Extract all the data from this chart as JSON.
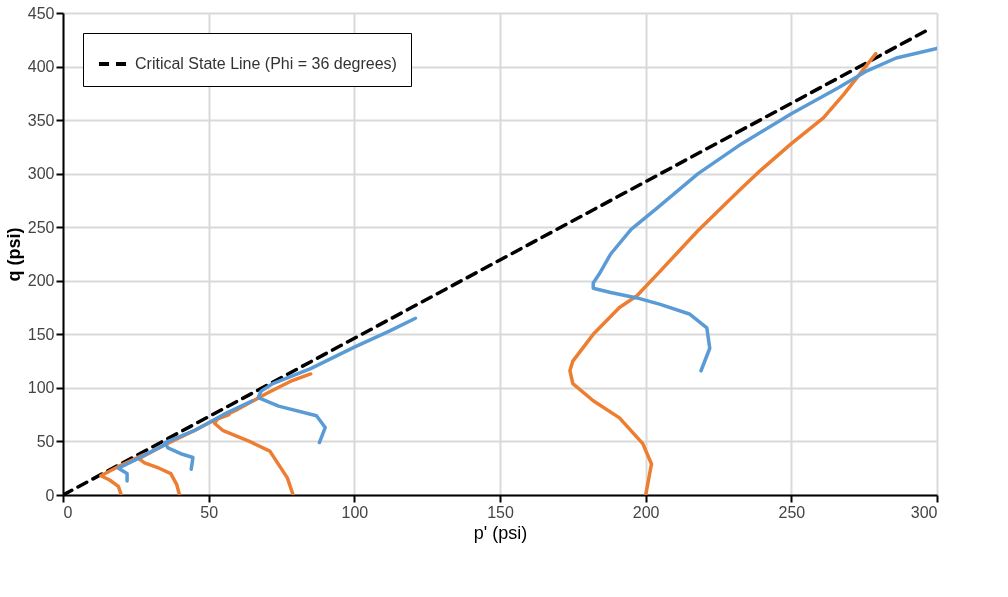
{
  "chart_data": {
    "type": "line",
    "xlabel": "p' (psi)",
    "ylabel": "q (psi)",
    "xlim": [
      0,
      300
    ],
    "ylim": [
      0,
      450
    ],
    "xticks": [
      0,
      50,
      100,
      150,
      200,
      250,
      300
    ],
    "yticks": [
      0,
      50,
      100,
      150,
      200,
      250,
      300,
      350,
      400,
      450
    ],
    "grid": true,
    "legend": "top left",
    "marker": "none",
    "series": [
      {
        "name": "Critical State Line (Phi = 36 degrees)",
        "color": "#000000",
        "line_style": "dashed",
        "x": [
          0,
          296
        ],
        "values": [
          0,
          433
        ]
      },
      {
        "color": "#ed7d31",
        "line_style": "solid",
        "x": [
          20,
          19,
          16,
          13,
          20,
          28
        ],
        "values": [
          0,
          8,
          14,
          18,
          28,
          38
        ]
      },
      {
        "color": "#ed7d31",
        "line_style": "solid",
        "x": [
          40,
          39,
          37,
          33,
          28,
          26,
          35,
          45,
          52,
          57
        ],
        "values": [
          0,
          10,
          20,
          25,
          30,
          34,
          47,
          60,
          70,
          75
        ]
      },
      {
        "color": "#ed7d31",
        "line_style": "solid",
        "x": [
          79,
          77,
          71,
          64,
          55,
          52,
          53,
          60,
          70,
          78,
          85
        ],
        "values": [
          0,
          16,
          41,
          50,
          60,
          67,
          71,
          80,
          95,
          106,
          113
        ]
      },
      {
        "color": "#ed7d31",
        "line_style": "solid",
        "x": [
          200,
          202,
          199,
          191,
          182,
          175,
          174,
          175,
          182,
          191,
          197,
          205,
          218,
          232,
          239,
          250,
          261,
          268,
          279
        ],
        "values": [
          0,
          29,
          48,
          72,
          88,
          104,
          116,
          125,
          150,
          175,
          186,
          209,
          247,
          284,
          302,
          328,
          352,
          374,
          412
        ]
      },
      {
        "color": "#5b9bd5",
        "line_style": "solid",
        "x": [
          22,
          22,
          19,
          25,
          35
        ],
        "values": [
          13,
          20,
          25,
          33,
          47
        ]
      },
      {
        "color": "#5b9bd5",
        "line_style": "solid",
        "x": [
          44,
          44.6,
          41,
          36,
          35,
          45,
          55,
          65
        ],
        "values": [
          24,
          35,
          38,
          44,
          49,
          60,
          75,
          88
        ]
      },
      {
        "color": "#5b9bd5",
        "line_style": "solid",
        "x": [
          88,
          90,
          87,
          74,
          67,
          68,
          72,
          85,
          100,
          112,
          121
        ],
        "values": [
          49,
          63,
          74,
          83,
          91,
          97,
          104,
          118,
          138,
          153,
          165
        ]
      },
      {
        "color": "#5b9bd5",
        "line_style": "solid",
        "x": [
          219,
          222,
          221,
          215,
          205,
          197,
          188,
          182,
          182,
          184,
          188,
          195,
          204,
          218,
          233,
          250,
          266,
          276,
          286,
          300
        ],
        "values": [
          116,
          137,
          156,
          169,
          178,
          184,
          189,
          193,
          198,
          206,
          225,
          248,
          268,
          300,
          328,
          356,
          380,
          396,
          408,
          417
        ]
      }
    ]
  }
}
